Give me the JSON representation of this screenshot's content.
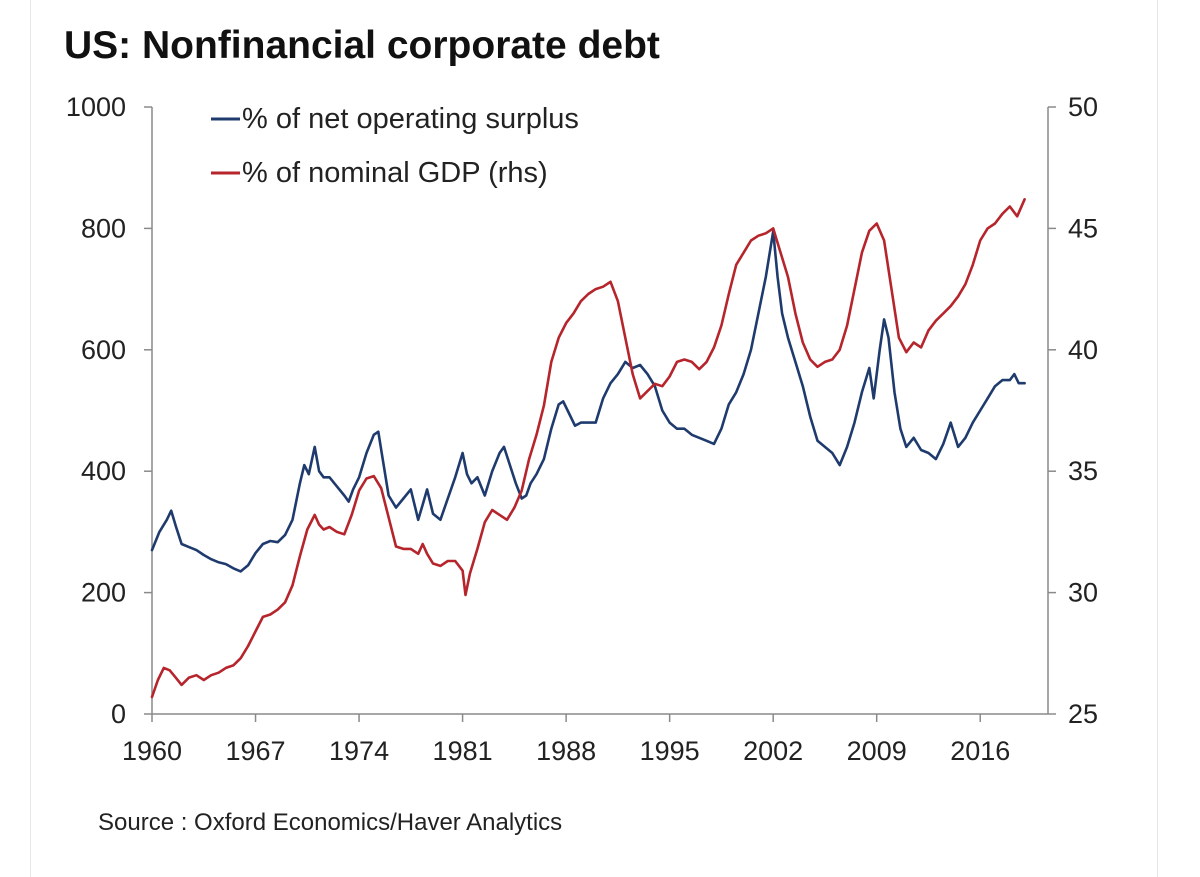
{
  "chart_data": {
    "type": "line",
    "title": "US: Nonfinancial corporate debt",
    "source": "Source : Oxford Economics/Haver Analytics",
    "x_ticks": [
      "1960",
      "1967",
      "1974",
      "1981",
      "1988",
      "1995",
      "2002",
      "2009",
      "2016"
    ],
    "xlim": [
      1960,
      2019.5
    ],
    "y_left": {
      "ticks": [
        "0",
        "200",
        "400",
        "600",
        "800",
        "1000"
      ],
      "lim": [
        0,
        1000
      ]
    },
    "y_right": {
      "ticks": [
        "25",
        "30",
        "35",
        "40",
        "45",
        "50"
      ],
      "lim": [
        25,
        50
      ]
    },
    "legend_position": "top-left",
    "grid": false,
    "series": [
      {
        "name": "% of net operating surplus",
        "axis": "left",
        "color": "#1f3b6e",
        "points": [
          [
            1960.0,
            270
          ],
          [
            1960.5,
            300
          ],
          [
            1961.0,
            320
          ],
          [
            1961.3,
            335
          ],
          [
            1961.6,
            310
          ],
          [
            1962.0,
            280
          ],
          [
            1962.5,
            275
          ],
          [
            1963.0,
            270
          ],
          [
            1963.5,
            262
          ],
          [
            1964.0,
            255
          ],
          [
            1964.5,
            250
          ],
          [
            1965.0,
            247
          ],
          [
            1965.5,
            240
          ],
          [
            1966.0,
            235
          ],
          [
            1966.5,
            245
          ],
          [
            1967.0,
            265
          ],
          [
            1967.5,
            280
          ],
          [
            1968.0,
            285
          ],
          [
            1968.5,
            283
          ],
          [
            1969.0,
            295
          ],
          [
            1969.5,
            320
          ],
          [
            1970.0,
            380
          ],
          [
            1970.3,
            410
          ],
          [
            1970.6,
            395
          ],
          [
            1971.0,
            440
          ],
          [
            1971.3,
            400
          ],
          [
            1971.6,
            390
          ],
          [
            1972.0,
            390
          ],
          [
            1972.5,
            375
          ],
          [
            1973.0,
            360
          ],
          [
            1973.3,
            350
          ],
          [
            1973.6,
            370
          ],
          [
            1974.0,
            390
          ],
          [
            1974.5,
            430
          ],
          [
            1975.0,
            460
          ],
          [
            1975.3,
            465
          ],
          [
            1975.6,
            420
          ],
          [
            1976.0,
            360
          ],
          [
            1976.5,
            340
          ],
          [
            1977.0,
            355
          ],
          [
            1977.5,
            370
          ],
          [
            1978.0,
            320
          ],
          [
            1978.3,
            345
          ],
          [
            1978.6,
            370
          ],
          [
            1979.0,
            330
          ],
          [
            1979.5,
            320
          ],
          [
            1980.0,
            355
          ],
          [
            1980.5,
            390
          ],
          [
            1981.0,
            430
          ],
          [
            1981.3,
            395
          ],
          [
            1981.6,
            380
          ],
          [
            1982.0,
            390
          ],
          [
            1982.5,
            360
          ],
          [
            1983.0,
            400
          ],
          [
            1983.5,
            430
          ],
          [
            1983.8,
            440
          ],
          [
            1984.2,
            410
          ],
          [
            1984.6,
            380
          ],
          [
            1985.0,
            355
          ],
          [
            1985.3,
            360
          ],
          [
            1985.6,
            380
          ],
          [
            1986.0,
            395
          ],
          [
            1986.5,
            420
          ],
          [
            1987.0,
            470
          ],
          [
            1987.5,
            510
          ],
          [
            1987.8,
            515
          ],
          [
            1988.2,
            495
          ],
          [
            1988.6,
            475
          ],
          [
            1989.0,
            480
          ],
          [
            1989.5,
            480
          ],
          [
            1990.0,
            480
          ],
          [
            1990.5,
            520
          ],
          [
            1991.0,
            545
          ],
          [
            1991.5,
            560
          ],
          [
            1992.0,
            580
          ],
          [
            1992.5,
            570
          ],
          [
            1993.0,
            575
          ],
          [
            1993.5,
            560
          ],
          [
            1994.0,
            540
          ],
          [
            1994.5,
            500
          ],
          [
            1995.0,
            480
          ],
          [
            1995.5,
            470
          ],
          [
            1996.0,
            470
          ],
          [
            1996.5,
            460
          ],
          [
            1997.0,
            455
          ],
          [
            1997.5,
            450
          ],
          [
            1998.0,
            445
          ],
          [
            1998.5,
            470
          ],
          [
            1999.0,
            510
          ],
          [
            1999.5,
            530
          ],
          [
            2000.0,
            560
          ],
          [
            2000.5,
            600
          ],
          [
            2001.0,
            660
          ],
          [
            2001.5,
            720
          ],
          [
            2002.0,
            795
          ],
          [
            2002.3,
            720
          ],
          [
            2002.6,
            660
          ],
          [
            2003.0,
            620
          ],
          [
            2003.5,
            580
          ],
          [
            2004.0,
            540
          ],
          [
            2004.5,
            490
          ],
          [
            2005.0,
            450
          ],
          [
            2005.5,
            440
          ],
          [
            2006.0,
            430
          ],
          [
            2006.5,
            410
          ],
          [
            2007.0,
            440
          ],
          [
            2007.5,
            480
          ],
          [
            2008.0,
            530
          ],
          [
            2008.5,
            570
          ],
          [
            2008.8,
            520
          ],
          [
            2009.2,
            600
          ],
          [
            2009.5,
            650
          ],
          [
            2009.8,
            620
          ],
          [
            2010.2,
            530
          ],
          [
            2010.6,
            470
          ],
          [
            2011.0,
            440
          ],
          [
            2011.5,
            455
          ],
          [
            2012.0,
            435
          ],
          [
            2012.5,
            430
          ],
          [
            2013.0,
            420
          ],
          [
            2013.5,
            445
          ],
          [
            2014.0,
            480
          ],
          [
            2014.5,
            440
          ],
          [
            2015.0,
            455
          ],
          [
            2015.5,
            480
          ],
          [
            2016.0,
            500
          ],
          [
            2016.5,
            520
          ],
          [
            2017.0,
            540
          ],
          [
            2017.5,
            550
          ],
          [
            2018.0,
            550
          ],
          [
            2018.3,
            560
          ],
          [
            2018.6,
            545
          ],
          [
            2019.0,
            545
          ]
        ]
      },
      {
        "name": "% of nominal GDP (rhs)",
        "axis": "right",
        "color": "#b5252b",
        "points": [
          [
            1960.0,
            25.7
          ],
          [
            1960.4,
            26.4
          ],
          [
            1960.8,
            26.9
          ],
          [
            1961.2,
            26.8
          ],
          [
            1961.6,
            26.5
          ],
          [
            1962.0,
            26.2
          ],
          [
            1962.5,
            26.5
          ],
          [
            1963.0,
            26.6
          ],
          [
            1963.5,
            26.4
          ],
          [
            1964.0,
            26.6
          ],
          [
            1964.5,
            26.7
          ],
          [
            1965.0,
            26.9
          ],
          [
            1965.5,
            27.0
          ],
          [
            1966.0,
            27.3
          ],
          [
            1966.5,
            27.8
          ],
          [
            1967.0,
            28.4
          ],
          [
            1967.5,
            29.0
          ],
          [
            1968.0,
            29.1
          ],
          [
            1968.5,
            29.3
          ],
          [
            1969.0,
            29.6
          ],
          [
            1969.5,
            30.3
          ],
          [
            1970.0,
            31.5
          ],
          [
            1970.5,
            32.6
          ],
          [
            1971.0,
            33.2
          ],
          [
            1971.3,
            32.8
          ],
          [
            1971.6,
            32.6
          ],
          [
            1972.0,
            32.7
          ],
          [
            1972.5,
            32.5
          ],
          [
            1973.0,
            32.4
          ],
          [
            1973.5,
            33.2
          ],
          [
            1974.0,
            34.2
          ],
          [
            1974.5,
            34.7
          ],
          [
            1975.0,
            34.8
          ],
          [
            1975.5,
            34.3
          ],
          [
            1976.0,
            33.1
          ],
          [
            1976.5,
            31.9
          ],
          [
            1977.0,
            31.8
          ],
          [
            1977.5,
            31.8
          ],
          [
            1978.0,
            31.6
          ],
          [
            1978.3,
            32.0
          ],
          [
            1978.6,
            31.6
          ],
          [
            1979.0,
            31.2
          ],
          [
            1979.5,
            31.1
          ],
          [
            1980.0,
            31.3
          ],
          [
            1980.5,
            31.3
          ],
          [
            1981.0,
            30.9
          ],
          [
            1981.2,
            29.9
          ],
          [
            1981.5,
            30.8
          ],
          [
            1982.0,
            31.8
          ],
          [
            1982.5,
            32.9
          ],
          [
            1983.0,
            33.4
          ],
          [
            1983.5,
            33.2
          ],
          [
            1984.0,
            33.0
          ],
          [
            1984.5,
            33.5
          ],
          [
            1985.0,
            34.2
          ],
          [
            1985.5,
            35.5
          ],
          [
            1986.0,
            36.5
          ],
          [
            1986.5,
            37.7
          ],
          [
            1987.0,
            39.5
          ],
          [
            1987.5,
            40.5
          ],
          [
            1988.0,
            41.1
          ],
          [
            1988.5,
            41.5
          ],
          [
            1989.0,
            42.0
          ],
          [
            1989.5,
            42.3
          ],
          [
            1990.0,
            42.5
          ],
          [
            1990.5,
            42.6
          ],
          [
            1991.0,
            42.8
          ],
          [
            1991.5,
            42.0
          ],
          [
            1992.0,
            40.5
          ],
          [
            1992.5,
            39.0
          ],
          [
            1993.0,
            38.0
          ],
          [
            1993.5,
            38.3
          ],
          [
            1994.0,
            38.6
          ],
          [
            1994.5,
            38.5
          ],
          [
            1995.0,
            38.9
          ],
          [
            1995.5,
            39.5
          ],
          [
            1996.0,
            39.6
          ],
          [
            1996.5,
            39.5
          ],
          [
            1997.0,
            39.2
          ],
          [
            1997.5,
            39.5
          ],
          [
            1998.0,
            40.1
          ],
          [
            1998.5,
            41.0
          ],
          [
            1999.0,
            42.3
          ],
          [
            1999.5,
            43.5
          ],
          [
            2000.0,
            44.0
          ],
          [
            2000.5,
            44.5
          ],
          [
            2001.0,
            44.7
          ],
          [
            2001.5,
            44.8
          ],
          [
            2002.0,
            45.0
          ],
          [
            2002.5,
            44.0
          ],
          [
            2003.0,
            43.0
          ],
          [
            2003.5,
            41.5
          ],
          [
            2004.0,
            40.3
          ],
          [
            2004.5,
            39.6
          ],
          [
            2005.0,
            39.3
          ],
          [
            2005.5,
            39.5
          ],
          [
            2006.0,
            39.6
          ],
          [
            2006.5,
            40.0
          ],
          [
            2007.0,
            41.0
          ],
          [
            2007.5,
            42.5
          ],
          [
            2008.0,
            44.0
          ],
          [
            2008.5,
            44.9
          ],
          [
            2009.0,
            45.2
          ],
          [
            2009.5,
            44.5
          ],
          [
            2010.0,
            42.5
          ],
          [
            2010.5,
            40.5
          ],
          [
            2011.0,
            39.9
          ],
          [
            2011.5,
            40.3
          ],
          [
            2012.0,
            40.1
          ],
          [
            2012.5,
            40.8
          ],
          [
            2013.0,
            41.2
          ],
          [
            2013.5,
            41.5
          ],
          [
            2014.0,
            41.8
          ],
          [
            2014.5,
            42.2
          ],
          [
            2015.0,
            42.7
          ],
          [
            2015.5,
            43.5
          ],
          [
            2016.0,
            44.5
          ],
          [
            2016.5,
            45.0
          ],
          [
            2017.0,
            45.2
          ],
          [
            2017.5,
            45.6
          ],
          [
            2018.0,
            45.9
          ],
          [
            2018.5,
            45.5
          ],
          [
            2019.0,
            46.2
          ]
        ]
      }
    ]
  }
}
